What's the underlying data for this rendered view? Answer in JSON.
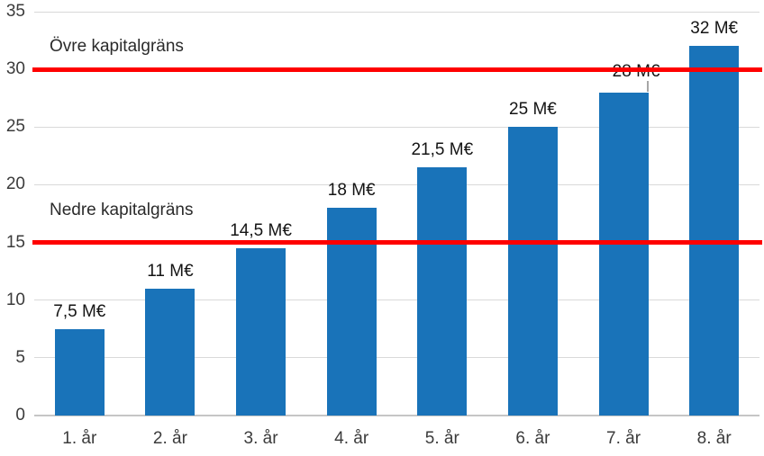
{
  "chart_data": {
    "type": "bar",
    "title": "",
    "xlabel": "",
    "ylabel": "",
    "categories": [
      "1. år",
      "2. år",
      "3. år",
      "4. år",
      "5. år",
      "6. år",
      "7. år",
      "8. år"
    ],
    "values": [
      7.5,
      11,
      14.5,
      18,
      21.5,
      25,
      28,
      32
    ],
    "value_labels": [
      "7,5 M€",
      "11 M€",
      "14,5 M€",
      "18 M€",
      "21,5 M€",
      "25 M€",
      "28 M€",
      "32 M€"
    ],
    "ylim": [
      0,
      35
    ],
    "yticks": [
      0,
      5,
      10,
      15,
      20,
      25,
      30,
      35
    ],
    "ytick_labels": [
      "0",
      "5",
      "10",
      "15",
      "20",
      "25",
      "30",
      "35"
    ],
    "grid": true,
    "legend": "none",
    "bar_color": "#1973b9",
    "gridline_color": "#d9d9d9",
    "reference_lines": [
      {
        "value": 30,
        "label": "Övre kapitalgräns",
        "color": "#ff0000"
      },
      {
        "value": 15,
        "label": "Nedre kapitalgräns",
        "color": "#ff0000"
      }
    ],
    "callout": {
      "category": "7. år",
      "value_label": "28 M€",
      "has_leader_line": true
    }
  }
}
